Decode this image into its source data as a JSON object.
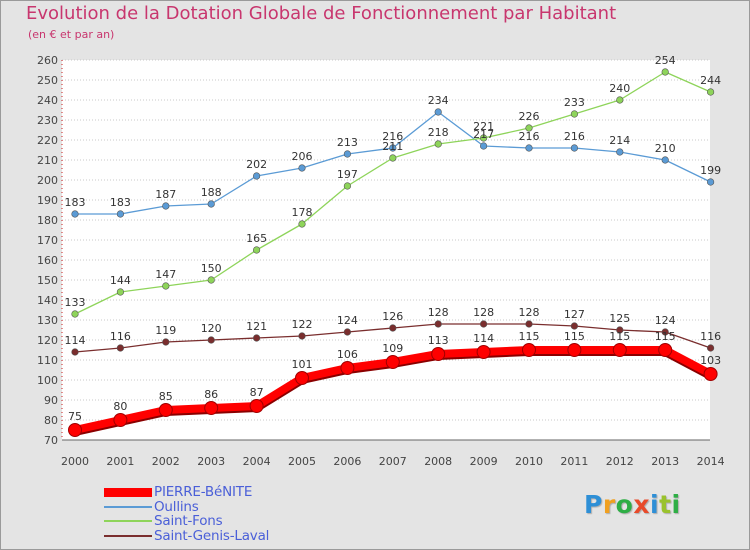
{
  "title": "Evolution de la Dotation Globale de Fonctionnement par Habitant",
  "subtitle": "(en € et par an)",
  "logo": {
    "letters": [
      "P",
      "r",
      "o",
      "x",
      "i",
      "t",
      "i"
    ],
    "colors": [
      "#2e8fd6",
      "#f0a020",
      "#2eae45",
      "#e84a2a",
      "#2e8fd6",
      "#9ac22c",
      "#2eae45"
    ]
  },
  "chart_data": {
    "type": "line",
    "x": [
      "2000",
      "2001",
      "2002",
      "2003",
      "2004",
      "2005",
      "2006",
      "2007",
      "2008",
      "2009",
      "2010",
      "2011",
      "2012",
      "2013",
      "2014"
    ],
    "ylim": [
      70,
      260
    ],
    "yticks": [
      70,
      80,
      90,
      100,
      110,
      120,
      130,
      140,
      150,
      160,
      170,
      180,
      190,
      200,
      210,
      220,
      230,
      240,
      250,
      260
    ],
    "grid": "horizontal dotted",
    "legend_position": "bottom-left",
    "series": [
      {
        "name": "PIERRE-BéNITE",
        "color": "#ff0000",
        "values": [
          75,
          80,
          85,
          86,
          87,
          101,
          106,
          109,
          113,
          114,
          115,
          115,
          115,
          115,
          103
        ]
      },
      {
        "name": "Oullins",
        "color": "#5b9bd5",
        "values": [
          183,
          183,
          187,
          188,
          202,
          206,
          213,
          216,
          234,
          217,
          216,
          216,
          214,
          210,
          199
        ]
      },
      {
        "name": "Saint-Fons",
        "color": "#8ed45a",
        "values": [
          133,
          144,
          147,
          150,
          165,
          178,
          197,
          211,
          218,
          221,
          226,
          233,
          240,
          254,
          244
        ]
      },
      {
        "name": "Saint-Genis-Laval",
        "color": "#7a2e2e",
        "values": [
          114,
          116,
          119,
          120,
          121,
          122,
          124,
          126,
          128,
          128,
          128,
          127,
          125,
          124,
          116
        ]
      }
    ]
  }
}
